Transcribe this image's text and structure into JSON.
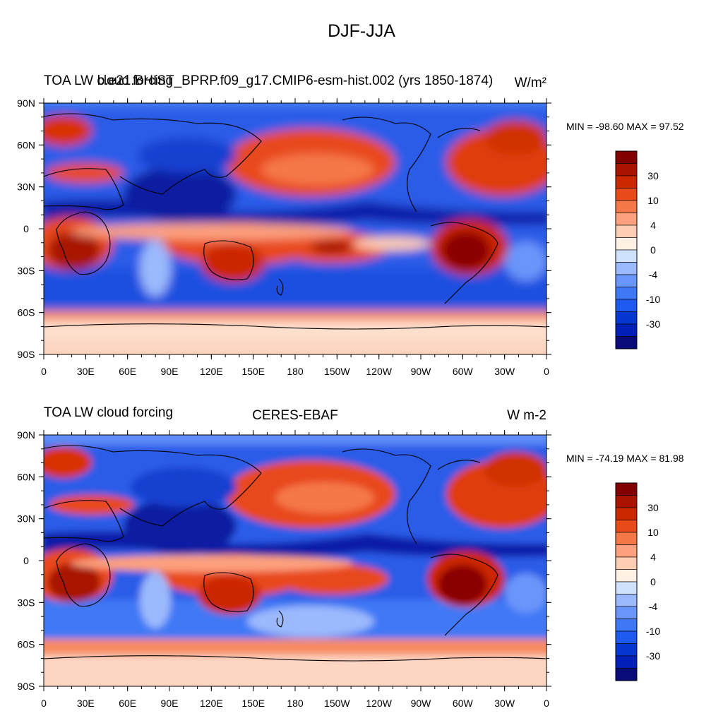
{
  "title": "DJF-JJA",
  "colors": {
    "palette": [
      "#0a0a7a",
      "#0020b8",
      "#0636d2",
      "#1e5af0",
      "#3f78f5",
      "#6a95fa",
      "#9bb9fc",
      "#cfe2fc",
      "#fff0e4",
      "#ffcdb4",
      "#fda07d",
      "#f57848",
      "#e84a1a",
      "#cc2800",
      "#a81400",
      "#820000"
    ]
  },
  "colorbar_labels": [
    "30",
    "10",
    "4",
    "0",
    "-4",
    "-10",
    "-30"
  ],
  "lat_ticks": [
    "90N",
    "60N",
    "30N",
    "0",
    "30S",
    "60S",
    "90S"
  ],
  "lon_ticks": [
    "0",
    "30E",
    "60E",
    "90E",
    "120E",
    "150E",
    "180",
    "150W",
    "120W",
    "90W",
    "60W",
    "30W",
    "0"
  ],
  "panels": [
    {
      "left_title": "TOA LW cloud forcing",
      "center_title": "b.e21.BHIST_BPRP.f09_g17.CMIP6-esm-hist.002 (yrs 1850-1874)",
      "right_title": "W/m²",
      "minmax": "MIN = -98.60 MAX =  97.52"
    },
    {
      "left_title": "TOA LW cloud forcing",
      "center_title": "CERES-EBAF",
      "right_title": "W m-2",
      "minmax": "MIN = -74.19 MAX =  81.98"
    }
  ]
}
